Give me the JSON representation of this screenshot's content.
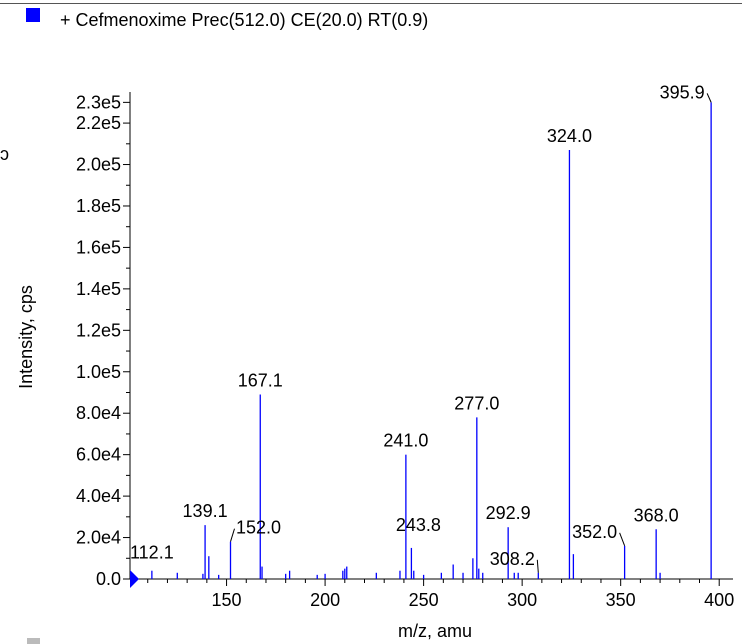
{
  "legend": {
    "label": "+ Cefmenoxime Prec(512.0) CE(20.0) RT(0.9)",
    "marker_color": "#0000ff"
  },
  "chart_data": {
    "type": "bar",
    "title": "",
    "xlabel": "m/z, amu",
    "ylabel": "Intensity, cps",
    "xlim": [
      101,
      407
    ],
    "ylim": [
      0,
      235000
    ],
    "x_ticks": [
      150,
      200,
      250,
      300,
      350,
      400
    ],
    "y_ticks": [
      0,
      20000,
      40000,
      60000,
      80000,
      100000,
      120000,
      140000,
      160000,
      180000,
      200000,
      220000,
      230000
    ],
    "y_tick_labels": [
      "0.0",
      "2.0e4",
      "4.0e4",
      "6.0e4",
      "8.0e4",
      "1.0e5",
      "1.2e5",
      "1.4e5",
      "1.6e5",
      "1.8e5",
      "2.0e5",
      "2.2e5",
      "2.3e5"
    ],
    "bar_color": "#0000ff",
    "peaks": [
      {
        "mz": 112.1,
        "intensity": 4000,
        "label": "112.1"
      },
      {
        "mz": 125.0,
        "intensity": 3000
      },
      {
        "mz": 138.0,
        "intensity": 2500
      },
      {
        "mz": 139.1,
        "intensity": 26000,
        "label": "139.1"
      },
      {
        "mz": 141.0,
        "intensity": 11000
      },
      {
        "mz": 146.0,
        "intensity": 2000
      },
      {
        "mz": 152.0,
        "intensity": 18000,
        "label": "152.0"
      },
      {
        "mz": 167.1,
        "intensity": 89000,
        "label": "167.1"
      },
      {
        "mz": 168.0,
        "intensity": 6000
      },
      {
        "mz": 180.0,
        "intensity": 2500
      },
      {
        "mz": 182.0,
        "intensity": 4000
      },
      {
        "mz": 196.0,
        "intensity": 2000
      },
      {
        "mz": 200.0,
        "intensity": 2500
      },
      {
        "mz": 209.0,
        "intensity": 4000
      },
      {
        "mz": 210.0,
        "intensity": 5000
      },
      {
        "mz": 211.0,
        "intensity": 6000
      },
      {
        "mz": 226.0,
        "intensity": 3000
      },
      {
        "mz": 238.0,
        "intensity": 4000
      },
      {
        "mz": 241.0,
        "intensity": 60000,
        "label": "241.0"
      },
      {
        "mz": 243.8,
        "intensity": 15000,
        "label": "243.8"
      },
      {
        "mz": 245.0,
        "intensity": 4000
      },
      {
        "mz": 250.0,
        "intensity": 2000
      },
      {
        "mz": 259.0,
        "intensity": 3000
      },
      {
        "mz": 265.0,
        "intensity": 7000
      },
      {
        "mz": 270.0,
        "intensity": 3000
      },
      {
        "mz": 275.0,
        "intensity": 10000
      },
      {
        "mz": 277.0,
        "intensity": 78000,
        "label": "277.0"
      },
      {
        "mz": 278.0,
        "intensity": 5000
      },
      {
        "mz": 280.0,
        "intensity": 3000
      },
      {
        "mz": 292.9,
        "intensity": 25000,
        "label": "292.9"
      },
      {
        "mz": 296.0,
        "intensity": 3000
      },
      {
        "mz": 298.0,
        "intensity": 3000
      },
      {
        "mz": 308.2,
        "intensity": 3000,
        "label": "308.2"
      },
      {
        "mz": 324.0,
        "intensity": 207000,
        "label": "324.0"
      },
      {
        "mz": 326.0,
        "intensity": 12000
      },
      {
        "mz": 352.0,
        "intensity": 16000,
        "label": "352.0"
      },
      {
        "mz": 368.0,
        "intensity": 24000,
        "label": "368.0"
      },
      {
        "mz": 370.0,
        "intensity": 3000
      },
      {
        "mz": 395.9,
        "intensity": 230000,
        "label": "395.9"
      }
    ]
  }
}
